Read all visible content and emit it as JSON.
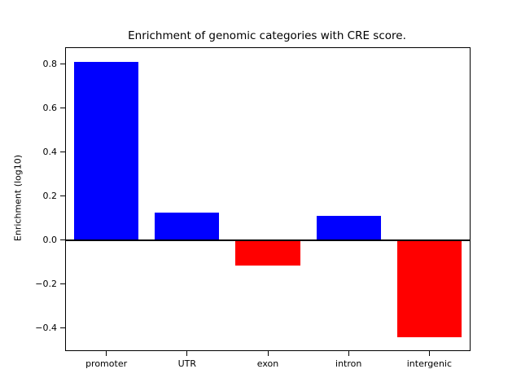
{
  "chart_data": {
    "type": "bar",
    "title": "Enrichment of genomic categories with CRE score.",
    "ylabel": "Enrichment (log10)",
    "xlabel": "",
    "categories": [
      "promoter",
      "UTR",
      "exon",
      "intron",
      "intergenic"
    ],
    "values": [
      0.81,
      0.125,
      -0.115,
      0.11,
      -0.44
    ],
    "ylim": [
      -0.5,
      0.8725
    ],
    "yticks": [
      -0.4,
      -0.2,
      0.0,
      0.2,
      0.4,
      0.6,
      0.8
    ],
    "positive_color": "#0000ff",
    "negative_color": "#ff0000",
    "axis_color": "#000000",
    "grid": false,
    "zero_line": true,
    "legend": "none",
    "bar_width_fraction": 0.8
  }
}
